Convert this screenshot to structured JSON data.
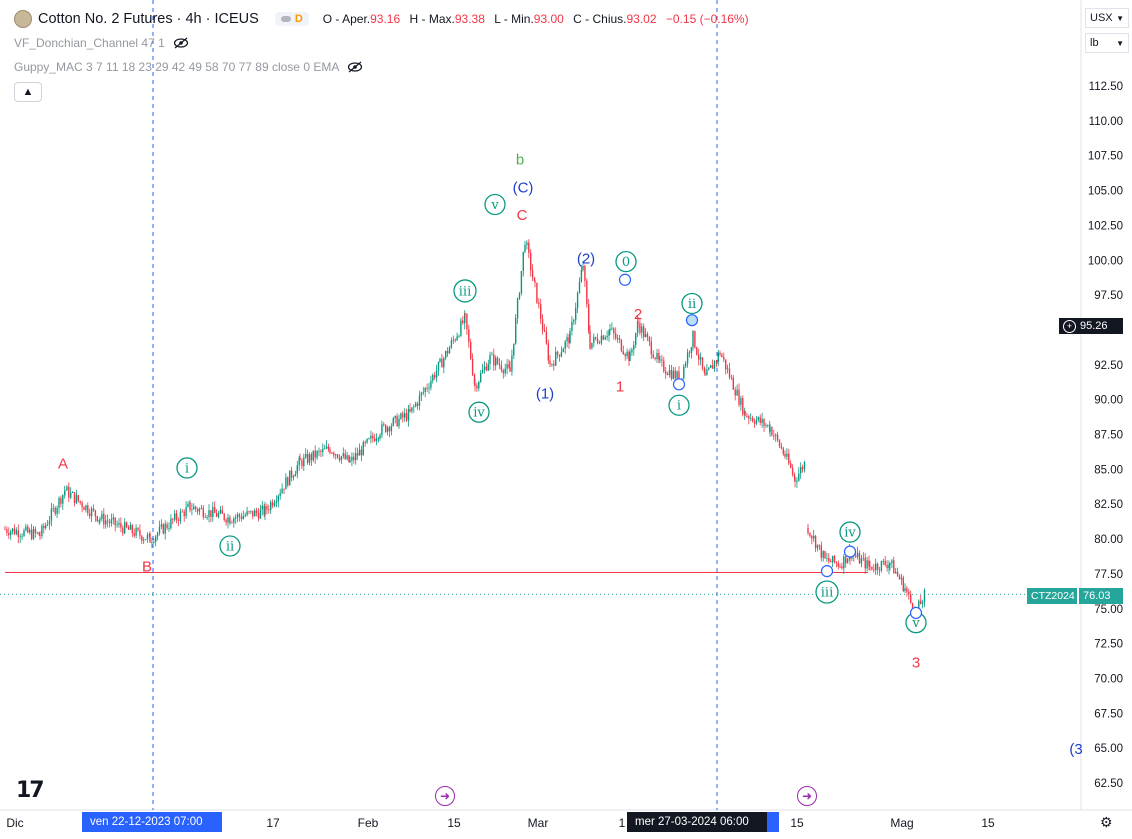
{
  "header": {
    "symbol_title": "Cotton No. 2 Futures · 4h · ICEUS",
    "badge_letter": "D",
    "ohlc": {
      "open_label": "O - Aper.",
      "open_value": "93.16",
      "high_label": "H - Max.",
      "high_value": "93.38",
      "low_label": "L - Min.",
      "low_value": "93.00",
      "close_label": "C - Chius.",
      "close_value": "93.02",
      "change_value": "−0.15 (−0.16%)"
    },
    "colors": {
      "down": "#f23645",
      "up": "#089981"
    }
  },
  "indicators": [
    {
      "label": "VF_Donchian_Channel 47 1",
      "icon": "eye-crossed-icon"
    },
    {
      "label": "Guppy_MAC 3 7 11 18 23 29 42 49 58 70 77 89 close 0 EMA",
      "icon": "eye-crossed-icon"
    }
  ],
  "right_panel": {
    "currency": "USX",
    "unit": "lb",
    "crosshair_price": "95.26",
    "last_symbol": "CTZ2024",
    "last_price": "76.03"
  },
  "price_axis": {
    "labels": [
      "112.50",
      "110.00",
      "107.50",
      "105.00",
      "102.50",
      "100.00",
      "97.50",
      "95.00",
      "92.50",
      "90.00",
      "87.50",
      "85.00",
      "82.50",
      "80.00",
      "77.50",
      "75.00",
      "72.50",
      "70.00",
      "67.50",
      "65.00",
      "62.50"
    ]
  },
  "time_axis": {
    "labels": [
      {
        "t": "Dic",
        "x": 15
      },
      {
        "t": "17",
        "x": 273
      },
      {
        "t": "Feb",
        "x": 368
      },
      {
        "t": "15",
        "x": 454
      },
      {
        "t": "Mar",
        "x": 538
      },
      {
        "t": "1",
        "x": 622
      },
      {
        "t": "00",
        "x": 769
      },
      {
        "t": "15",
        "x": 797
      },
      {
        "t": "Mag",
        "x": 902
      },
      {
        "t": "15",
        "x": 988
      }
    ],
    "crosshair_left": "ven 22-12-2023   07:00",
    "crosshair_right": "mer 27-03-2024   06:00"
  },
  "chart_data": {
    "type": "candlestick",
    "timeframe": "4h",
    "ylim": [
      61.5,
      114
    ],
    "y_ticks": [
      62.5,
      65,
      67.5,
      70,
      72.5,
      75,
      77.5,
      80,
      82.5,
      85,
      87.5,
      90,
      92.5,
      95,
      97.5,
      100,
      102.5,
      105,
      107.5,
      110,
      112.5
    ],
    "price_path": [
      {
        "x": 5,
        "p": 80.7
      },
      {
        "x": 40,
        "p": 80.3
      },
      {
        "x": 65,
        "p": 83.5
      },
      {
        "x": 100,
        "p": 81.5
      },
      {
        "x": 150,
        "p": 80.0
      },
      {
        "x": 190,
        "p": 82.3
      },
      {
        "x": 230,
        "p": 81.5
      },
      {
        "x": 265,
        "p": 82.0
      },
      {
        "x": 300,
        "p": 85.5
      },
      {
        "x": 330,
        "p": 86.5
      },
      {
        "x": 350,
        "p": 85.5
      },
      {
        "x": 380,
        "p": 87.8
      },
      {
        "x": 410,
        "p": 89.0
      },
      {
        "x": 440,
        "p": 92.5
      },
      {
        "x": 465,
        "p": 95.8
      },
      {
        "x": 475,
        "p": 91.0
      },
      {
        "x": 490,
        "p": 93.0
      },
      {
        "x": 510,
        "p": 92.0
      },
      {
        "x": 525,
        "p": 101.5
      },
      {
        "x": 535,
        "p": 98.0
      },
      {
        "x": 550,
        "p": 92.5
      },
      {
        "x": 570,
        "p": 94.5
      },
      {
        "x": 583,
        "p": 99.7
      },
      {
        "x": 590,
        "p": 94.0
      },
      {
        "x": 610,
        "p": 95.0
      },
      {
        "x": 630,
        "p": 93.0
      },
      {
        "x": 638,
        "p": 95.5
      },
      {
        "x": 660,
        "p": 92.5
      },
      {
        "x": 680,
        "p": 91.5
      },
      {
        "x": 693,
        "p": 94.5
      },
      {
        "x": 705,
        "p": 91.5
      },
      {
        "x": 720,
        "p": 93.4
      },
      {
        "x": 745,
        "p": 89.0
      },
      {
        "x": 770,
        "p": 88.0
      },
      {
        "x": 785,
        "p": 86.0
      },
      {
        "x": 795,
        "p": 84.3
      },
      {
        "x": 805,
        "p": 85.5
      },
      {
        "x": 808,
        "p": 80.8
      },
      {
        "x": 825,
        "p": 78.5
      },
      {
        "x": 840,
        "p": 78.2
      },
      {
        "x": 850,
        "p": 79.0
      },
      {
        "x": 870,
        "p": 78.0
      },
      {
        "x": 890,
        "p": 78.3
      },
      {
        "x": 905,
        "p": 76.5
      },
      {
        "x": 915,
        "p": 74.6
      },
      {
        "x": 925,
        "p": 76.0
      }
    ],
    "horizontal_line_price": 77.6,
    "wave_labels": [
      {
        "text": "A",
        "p": 85.5,
        "x": 63,
        "style": "plain-red"
      },
      {
        "text": "B",
        "p": 78.1,
        "x": 147,
        "style": "plain-red"
      },
      {
        "text": "i",
        "p": 85.1,
        "x": 187,
        "style": "circle-green"
      },
      {
        "text": "ii",
        "p": 79.5,
        "x": 230,
        "style": "circle-green"
      },
      {
        "text": "iii",
        "p": 97.8,
        "x": 465,
        "style": "circle-green"
      },
      {
        "text": "iv",
        "p": 89.1,
        "x": 479,
        "style": "circle-green"
      },
      {
        "text": "v",
        "p": 104.0,
        "x": 495,
        "style": "circle-green"
      },
      {
        "text": "C",
        "p": 103.3,
        "x": 522,
        "style": "plain-red"
      },
      {
        "text": "(C)",
        "p": 105.3,
        "x": 523,
        "style": "plain-blue"
      },
      {
        "text": "b",
        "p": 107.3,
        "x": 520,
        "style": "plain-green"
      },
      {
        "text": "(1)",
        "p": 90.5,
        "x": 545,
        "style": "plain-blue"
      },
      {
        "text": "(2)",
        "p": 100.2,
        "x": 586,
        "style": "plain-blue"
      },
      {
        "text": "0",
        "p": 99.9,
        "x": 626,
        "style": "circle-green"
      },
      {
        "text": "2",
        "p": 96.2,
        "x": 638,
        "style": "plain-red"
      },
      {
        "text": "1",
        "p": 91.0,
        "x": 620,
        "style": "plain-red"
      },
      {
        "text": "ii",
        "p": 96.9,
        "x": 692,
        "style": "circle-green"
      },
      {
        "text": "i",
        "p": 89.6,
        "x": 679,
        "style": "circle-green"
      },
      {
        "text": "iv",
        "p": 80.5,
        "x": 850,
        "style": "circle-green"
      },
      {
        "text": "iii",
        "p": 76.2,
        "x": 827,
        "style": "circle-green"
      },
      {
        "text": "v",
        "p": 74.0,
        "x": 916,
        "style": "circle-green"
      },
      {
        "text": "3",
        "p": 71.2,
        "x": 916,
        "style": "plain-red"
      },
      {
        "text": "(3",
        "p": 65.0,
        "x": 1076,
        "style": "plain-blue"
      }
    ],
    "pivot_markers": [
      {
        "x": 625,
        "p": 98.6
      },
      {
        "x": 692,
        "p": 95.7
      },
      {
        "x": 679,
        "p": 91.1
      },
      {
        "x": 850,
        "p": 79.1
      },
      {
        "x": 827,
        "p": 77.7
      },
      {
        "x": 916,
        "p": 74.7
      }
    ],
    "vertical_lines_x": [
      153,
      717
    ]
  }
}
